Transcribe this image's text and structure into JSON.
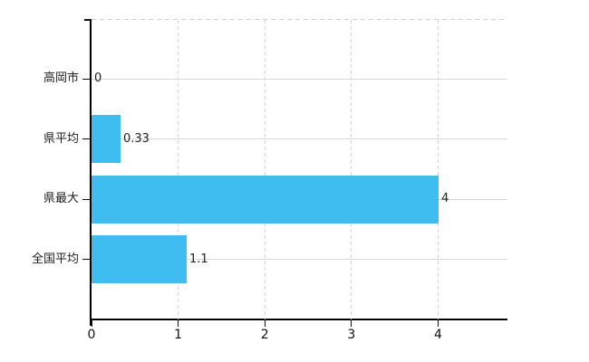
{
  "chart_data": {
    "type": "bar",
    "orientation": "horizontal",
    "title": "",
    "xlabel": "",
    "ylabel": "",
    "categories": [
      "高岡市",
      "県平均",
      "県最大",
      "全国平均"
    ],
    "values": [
      0,
      0.33,
      4,
      1.1
    ],
    "value_labels": [
      "0",
      "0.33",
      "4",
      "1.1"
    ],
    "x_ticks": [
      0,
      1,
      2,
      3,
      4
    ],
    "x_tick_labels": [
      "0",
      "1",
      "2",
      "3",
      "4"
    ],
    "xlim": [
      0,
      4.8
    ],
    "grid": true,
    "legend": false,
    "colors": {
      "bar": "#3fbdf1",
      "axis": "#000000",
      "grid_h": "#d5dad2",
      "grid_v": "#d3d2d5",
      "text": "#1c1c1c",
      "background": "#ffffff"
    }
  }
}
